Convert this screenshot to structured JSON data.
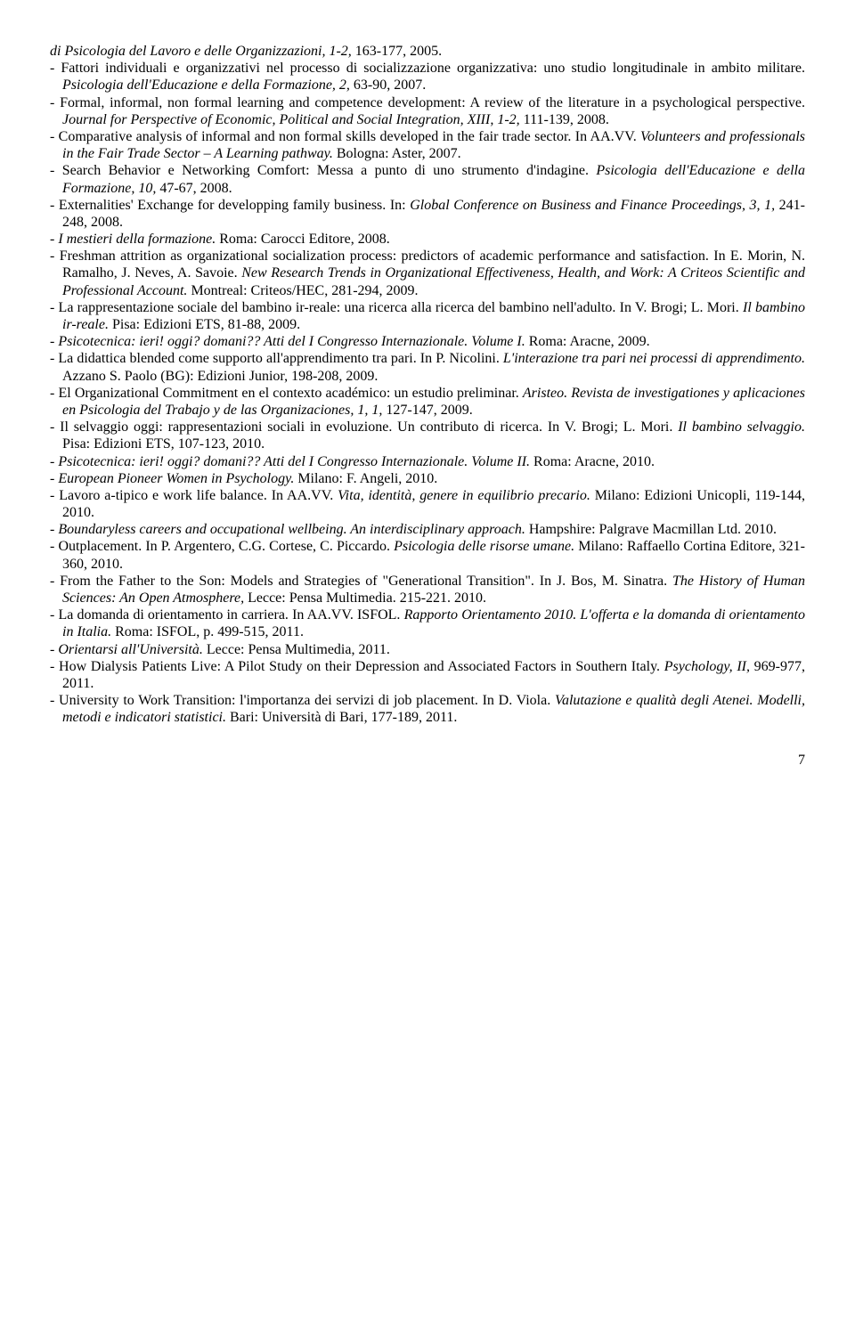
{
  "entries": [
    {
      "html": "<span class='italic'>di Psicologia del Lavoro e delle Organizzazioni, 1-2,</span> 163-177, 2005."
    },
    {
      "html": "- Fattori individuali e organizzativi nel processo di socializzazione organizzativa: uno studio longitudinale in ambito militare. <span class='italic'>Psicologia dell'Educazione e della Formazione, 2,</span> 63-90, 2007."
    },
    {
      "html": "- Formal, informal, non formal learning and competence development: A review of the literature in a psychological perspective. <span class='italic'>Journal for Perspective of Economic, Political and Social Integration, XIII, 1-2,</span> 111-139, 2008."
    },
    {
      "html": "- Comparative analysis of informal and non formal skills developed in the fair trade sector. In AA.VV. <span class='italic'>Volunteers and professionals in the Fair Trade Sector – A Learning pathway.</span> Bologna: Aster, 2007."
    },
    {
      "html": "- Search Behavior e Networking Comfort: Messa a punto di uno strumento d'indagine. <span class='italic'>Psicologia dell'Educazione e della Formazione, 10,</span> 47-67, 2008."
    },
    {
      "html": "- Externalities' Exchange for developping family business. In: <span class='italic'>Global Conference on Business and Finance Proceedings, 3, 1,</span> 241-248, 2008."
    },
    {
      "html": "- <span class='italic'>I mestieri della formazione.</span> Roma: Carocci Editore, 2008."
    },
    {
      "html": "- Freshman attrition as organizational socialization process: predictors of academic performance and satisfaction. In E. Morin, N. Ramalho, J. Neves, A. Savoie. <span class='italic'>New Research Trends in Organizational Effectiveness, Health, and Work: A Criteos Scientific and Professional Account.</span> Montreal: Criteos/HEC, 281-294, 2009."
    },
    {
      "html": "- La rappresentazione sociale del bambino ir-reale: una ricerca alla ricerca del bambino nell'adulto. In V. Brogi; L. Mori. <span class='italic'>Il bambino ir-reale.</span> Pisa: Edizioni ETS, 81-88, 2009."
    },
    {
      "html": "- <span class='italic'>Psicotecnica: ieri! oggi? domani?? Atti del I Congresso Internazionale. Volume I.</span> Roma: Aracne, 2009."
    },
    {
      "html": "- La didattica blended come supporto all'apprendimento tra pari. In P. Nicolini. <span class='italic'>L'interazione tra pari nei processi di apprendimento.</span> Azzano S. Paolo (BG): Edizioni Junior, 198-208, 2009."
    },
    {
      "html": "- El Organizational Commitment en el contexto académico: un estudio preliminar. <span class='italic'>Aristeo. Revista de investigationes y aplicaciones en Psicologia del Trabajo y de las Organizaciones, 1, 1,</span> 127-147, 2009."
    },
    {
      "html": "- Il selvaggio oggi: rappresentazioni sociali in evoluzione. Un contributo di ricerca. In V. Brogi; L. Mori. <span class='italic'>Il bambino selvaggio.</span> Pisa: Edizioni ETS, 107-123, 2010."
    },
    {
      "html": "- <span class='italic'>Psicotecnica: ieri! oggi? domani?? Atti del I Congresso Internazionale. Volume II.</span> Roma: Aracne, 2010."
    },
    {
      "html": "- <span class='italic'>European Pioneer Women in Psychology.</span> Milano: F. Angeli, 2010."
    },
    {
      "html": "- Lavoro a-tipico e work life balance. In AA.VV. <span class='italic'>Vita, identità, genere in equilibrio precario.</span> Milano: Edizioni Unicopli, 119-144, 2010."
    },
    {
      "html": "- <span class='italic'>Boundaryless careers and occupational wellbeing. An interdisciplinary approach.</span> Hampshire: Palgrave Macmillan Ltd. 2010."
    },
    {
      "html": "- Outplacement. In P. Argentero, C.G. Cortese, C. Piccardo. <span class='italic'>Psicologia delle risorse umane.</span> Milano: Raffaello Cortina Editore, 321-360, 2010."
    },
    {
      "html": "- From the Father to the Son: Models and Strategies of \"Generational Transition\". In J. Bos, M. Sinatra. <span class='italic'>The History of Human Sciences: An Open Atmosphere,</span> Lecce: Pensa Multimedia. 215-221. 2010."
    },
    {
      "html": "- La domanda di orientamento in carriera. In AA.VV. ISFOL. <span class='italic'>Rapporto Orientamento 2010. L'offerta e la domanda di orientamento in Italia.</span> Roma: ISFOL, p. 499-515, 2011."
    },
    {
      "html": "- <span class='italic'>Orientarsi all'Università.</span> Lecce: Pensa Multimedia, 2011."
    },
    {
      "html": "- How Dialysis Patients Live: A Pilot Study on their Depression and Associated Factors in Southern Italy. <span class='italic'>Psychology, II,</span> 969-977, 2011."
    },
    {
      "html": "- University to Work Transition: l'importanza dei servizi di job placement. In D. Viola. <span class='italic'>Valutazione e qualità degli Atenei. Modelli, metodi e indicatori statistici.</span> Bari: Università di Bari, 177-189, 2011."
    }
  ],
  "pageNumber": "7"
}
